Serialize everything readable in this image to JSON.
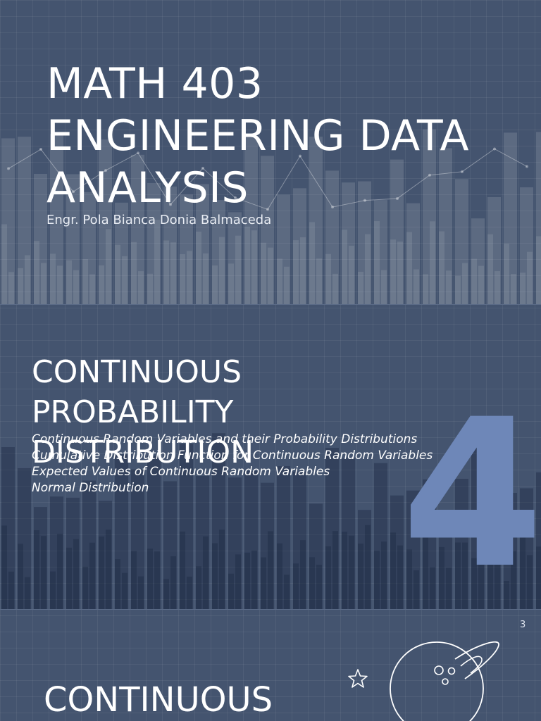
{
  "slide1": {
    "title_lines": [
      "MATH 403",
      "ENGINEERING DATA",
      "ANALYSIS"
    ],
    "author": "Engr. Pola Bianca Donia Balmaceda"
  },
  "slide2": {
    "title_lines": [
      "CONTINUOUS",
      "PROBABILITY",
      "DISTRIBUTION"
    ],
    "topics": [
      "Continuous Random Variables and their Probability Distributions",
      "Cumulative Distribution Function for Continuous Random Variables",
      "Expected Values of Continuous Random Variables",
      "Normal Distribution"
    ],
    "chapter_number": "4"
  },
  "slide3": {
    "page_number": "3",
    "title": "CONTINUOUS"
  },
  "decor": {
    "icons": [
      "star-icon",
      "planet-icon"
    ],
    "colors": {
      "background": "#44546f",
      "chapter_number": "#6e87b8",
      "text": "#ffffff"
    }
  }
}
